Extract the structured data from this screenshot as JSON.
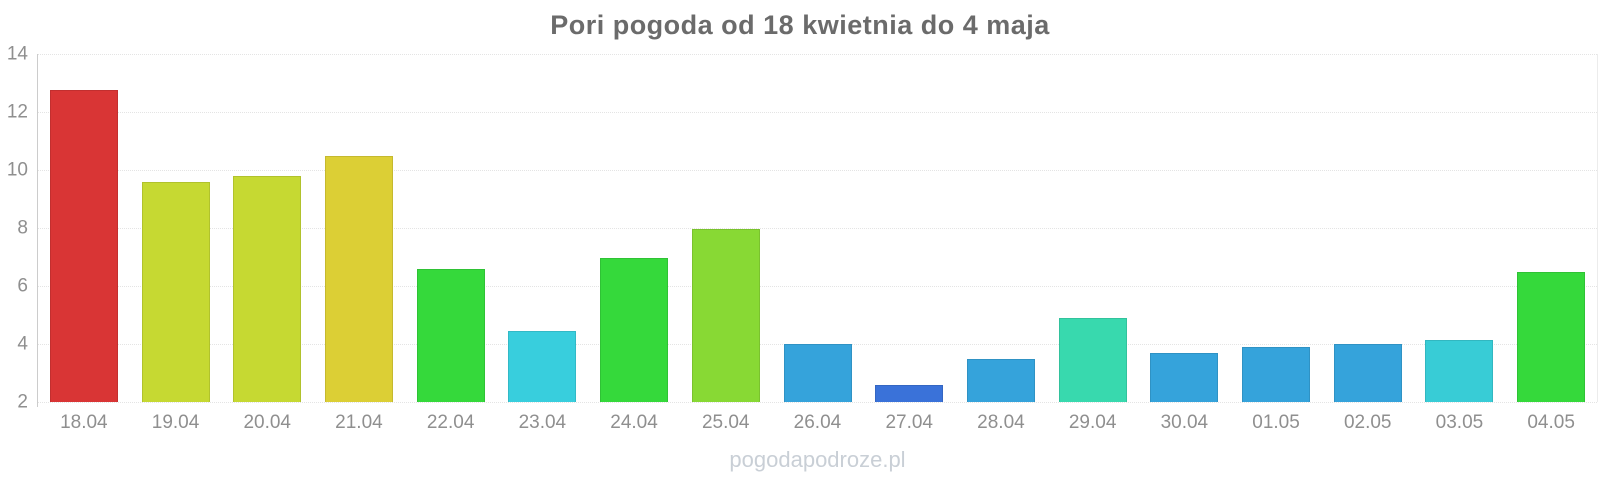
{
  "page": {
    "watermark": "pogodapodroze.pl"
  },
  "chart_data": {
    "type": "bar",
    "title": "Pori pogoda od 18 kwietnia do 4 maja",
    "xlabel": "",
    "ylabel": "",
    "ylim": [
      2,
      14
    ],
    "y_ticks": [
      2,
      4,
      6,
      8,
      10,
      12,
      14
    ],
    "grid": true,
    "legend": false,
    "categories": [
      "18.04",
      "19.04",
      "20.04",
      "21.04",
      "22.04",
      "23.04",
      "24.04",
      "25.04",
      "26.04",
      "27.04",
      "28.04",
      "29.04",
      "30.04",
      "01.05",
      "02.05",
      "03.05",
      "04.05"
    ],
    "values": [
      12.75,
      9.6,
      9.8,
      10.5,
      6.6,
      4.45,
      6.95,
      7.95,
      4.0,
      2.6,
      3.5,
      4.9,
      3.7,
      3.9,
      4.0,
      4.15,
      6.5
    ],
    "bar_colors": [
      "#d93535",
      "#c6d932",
      "#c6d932",
      "#dccf35",
      "#35d93b",
      "#38cedd",
      "#35d93b",
      "#88d934",
      "#35a3db",
      "#3a72d9",
      "#35a3db",
      "#38d9ae",
      "#35a3db",
      "#35a3db",
      "#35a3db",
      "#38ccd6",
      "#35d93b"
    ]
  },
  "colors": {
    "title_text": "#6b6b6b",
    "axis_text": "#8f8f8f",
    "gridline": "#e4e4e4",
    "axis_line": "#cccccc",
    "watermark_text": "#c9cfd6",
    "background": "#ffffff"
  }
}
